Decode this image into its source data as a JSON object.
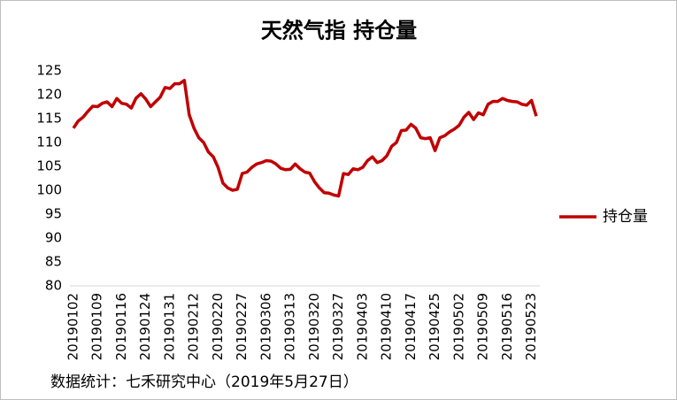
{
  "chart_data": {
    "type": "line",
    "title": "天然气指 持仓量",
    "source": "数据统计：七禾研究中心（2019年5月27日）",
    "categories": [
      "20190102",
      null,
      null,
      null,
      null,
      "20190109",
      null,
      null,
      null,
      null,
      "20190116",
      null,
      null,
      null,
      null,
      "20190124",
      null,
      null,
      null,
      null,
      "20190131",
      null,
      null,
      null,
      null,
      "20190212",
      null,
      null,
      null,
      null,
      "20190220",
      null,
      null,
      null,
      null,
      "20190227",
      null,
      null,
      null,
      null,
      "20190306",
      null,
      null,
      null,
      null,
      "20190313",
      null,
      null,
      null,
      null,
      "20190320",
      null,
      null,
      null,
      null,
      "20190327",
      null,
      null,
      null,
      null,
      "20190403",
      null,
      null,
      null,
      null,
      "20190410",
      null,
      null,
      null,
      null,
      "20190417",
      null,
      null,
      null,
      null,
      "20190425",
      null,
      null,
      null,
      null,
      "20190502",
      null,
      null,
      null,
      null,
      "20190509",
      null,
      null,
      null,
      null,
      "20190516",
      null,
      null,
      null,
      null,
      "20190523",
      null
    ],
    "series": [
      {
        "name": "持仓量",
        "color": "#c00000",
        "values": [
          113,
          114.5,
          115.3,
          116.5,
          117.6,
          117.5,
          118.2,
          118.5,
          117.5,
          119.2,
          118.2,
          118,
          117.2,
          119.3,
          120.2,
          119.1,
          117.5,
          118.5,
          119.5,
          121.5,
          121.3,
          122.3,
          122.3,
          123,
          115.8,
          113,
          111,
          110,
          108,
          107,
          104.8,
          101.5,
          100.5,
          100,
          100.2,
          103.5,
          103.8,
          104.8,
          105.5,
          105.8,
          106.2,
          106.1,
          105.5,
          104.6,
          104.3,
          104.4,
          105.5,
          104.5,
          103.8,
          103.6,
          101.8,
          100.5,
          99.5,
          99.4,
          99,
          98.8,
          103.5,
          103.3,
          104.5,
          104.3,
          104.8,
          106.2,
          107,
          105.8,
          106.2,
          107.2,
          109.2,
          110,
          112.5,
          112.6,
          113.8,
          113,
          111,
          110.8,
          111,
          108.3,
          111,
          111.4,
          112.2,
          112.8,
          113.6,
          115.3,
          116.3,
          114.8,
          116.2,
          115.8,
          118,
          118.6,
          118.6,
          119.2,
          118.8,
          118.6,
          118.5,
          118,
          117.8,
          118.8,
          115.5
        ]
      }
    ],
    "ylim": [
      80,
      125
    ],
    "yticks": [
      80,
      85,
      90,
      95,
      100,
      105,
      110,
      115,
      120,
      125
    ],
    "grid": false,
    "legend": "right"
  }
}
